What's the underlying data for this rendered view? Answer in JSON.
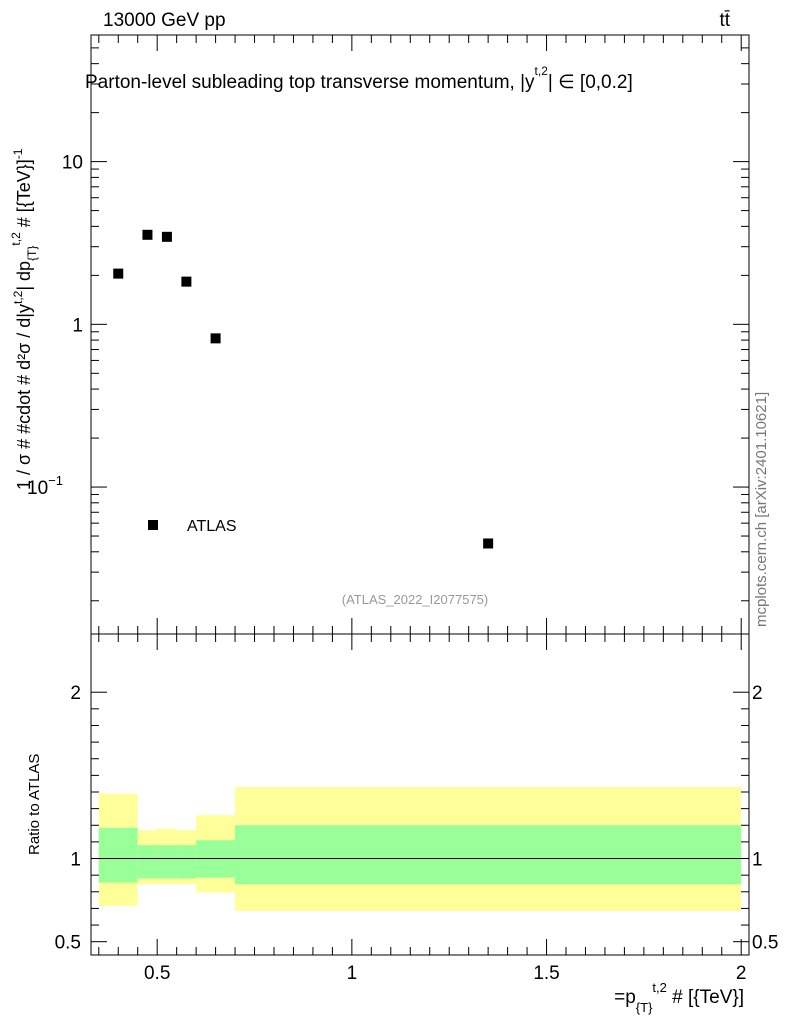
{
  "header": {
    "energy_label": "13000 GeV pp",
    "process_label": "tt̄",
    "title": "Parton-level subleading top transverse momentum, |y",
    "title_sup": "t,2",
    "title_tail": "| ∈ [0,0.2]",
    "side_label": "mcplots.cern.ch [arXiv:2401.10621]"
  },
  "chart_data": [
    {
      "type": "scatter",
      "title": "Parton-level subleading top transverse momentum, |y^{t,2}| ∈ [0,0.2]",
      "ylabel": "1 / σ # #cdot # d²σ / d|y^{t,2}| dp_{T}^{t,2} # [{TeV}]^{-1}",
      "yscale": "log",
      "xlim": [
        0.33,
        2.02
      ],
      "ylim": [
        0.0125,
        60
      ],
      "y_ticks": [
        {
          "value": 10,
          "label": "10"
        },
        {
          "value": 1,
          "label": "1"
        },
        {
          "value": 0.1,
          "label": "10",
          "sup": "−1"
        }
      ],
      "series": [
        {
          "name": "ATLAS",
          "x": [
            0.4,
            0.475,
            0.525,
            0.575,
            0.65,
            1.35
          ],
          "y": [
            2.05,
            3.55,
            3.45,
            1.83,
            0.82,
            0.045
          ]
        }
      ],
      "legend": {
        "entry": "ATLAS",
        "placement": "bottom-left"
      },
      "watermark": "(ATLAS_2022_I2077575)"
    },
    {
      "type": "area",
      "ylabel": "Ratio to ATLAS",
      "xlabel": "=p_{T}^{t,2} # [{TeV}]",
      "xlim": [
        0.33,
        2.02
      ],
      "ylim": [
        0.42,
        2.35
      ],
      "x_ticks": [
        {
          "value": 0.5,
          "label": "0.5"
        },
        {
          "value": 1,
          "label": "1"
        },
        {
          "value": 1.5,
          "label": "1.5"
        },
        {
          "value": 2,
          "label": "2"
        }
      ],
      "y_ticks": [
        {
          "value": 0.5,
          "label": "0.5"
        },
        {
          "value": 1,
          "label": "1"
        },
        {
          "value": 2,
          "label": "2"
        }
      ],
      "reference_line": 1,
      "bins": [
        {
          "x0": 0.35,
          "x1": 0.45,
          "inner": [
            0.855,
            1.185
          ],
          "outer": [
            0.715,
            1.39
          ]
        },
        {
          "x0": 0.45,
          "x1": 0.5,
          "inner": [
            0.88,
            1.08
          ],
          "outer": [
            0.845,
            1.17
          ]
        },
        {
          "x0": 0.5,
          "x1": 0.55,
          "inner": [
            0.88,
            1.08
          ],
          "outer": [
            0.845,
            1.18
          ]
        },
        {
          "x0": 0.55,
          "x1": 0.6,
          "inner": [
            0.88,
            1.08
          ],
          "outer": [
            0.845,
            1.17
          ]
        },
        {
          "x0": 0.6,
          "x1": 0.7,
          "inner": [
            0.885,
            1.11
          ],
          "outer": [
            0.795,
            1.26
          ]
        },
        {
          "x0": 0.7,
          "x1": 2.0,
          "inner": [
            0.845,
            1.2
          ],
          "outer": [
            0.685,
            1.43
          ]
        }
      ]
    }
  ]
}
